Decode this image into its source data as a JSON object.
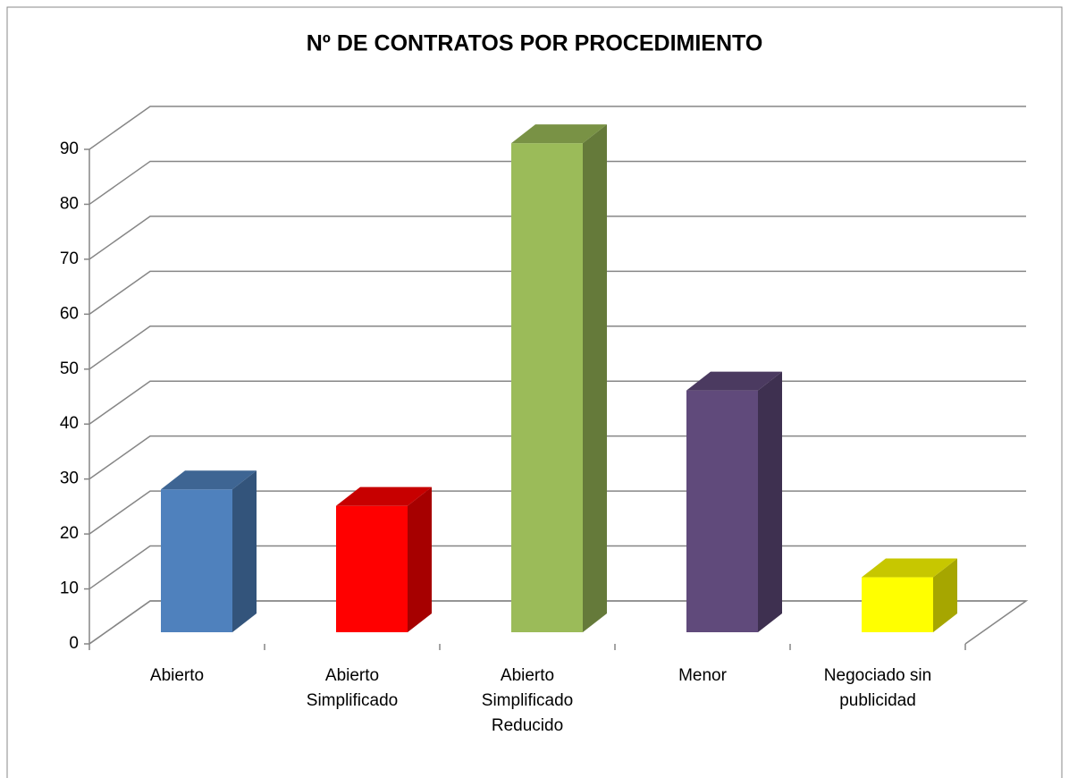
{
  "chart_data": {
    "type": "bar3d",
    "title": "Nº DE CONTRATOS POR PROCEDIMIENTO",
    "categories": [
      "Abierto",
      "Abierto Simplificado",
      "Abierto Simplificado Reducido",
      "Menor",
      "Negociado sin publicidad"
    ],
    "values": [
      26,
      23,
      89,
      44,
      10
    ],
    "colors": [
      "#4f81bd",
      "#ff0000",
      "#9bbb59",
      "#604a7b",
      "#ffff00"
    ],
    "ylim": [
      0,
      90
    ],
    "yticks": [
      0,
      10,
      20,
      30,
      40,
      50,
      60,
      70,
      80,
      90
    ],
    "grid": true
  }
}
